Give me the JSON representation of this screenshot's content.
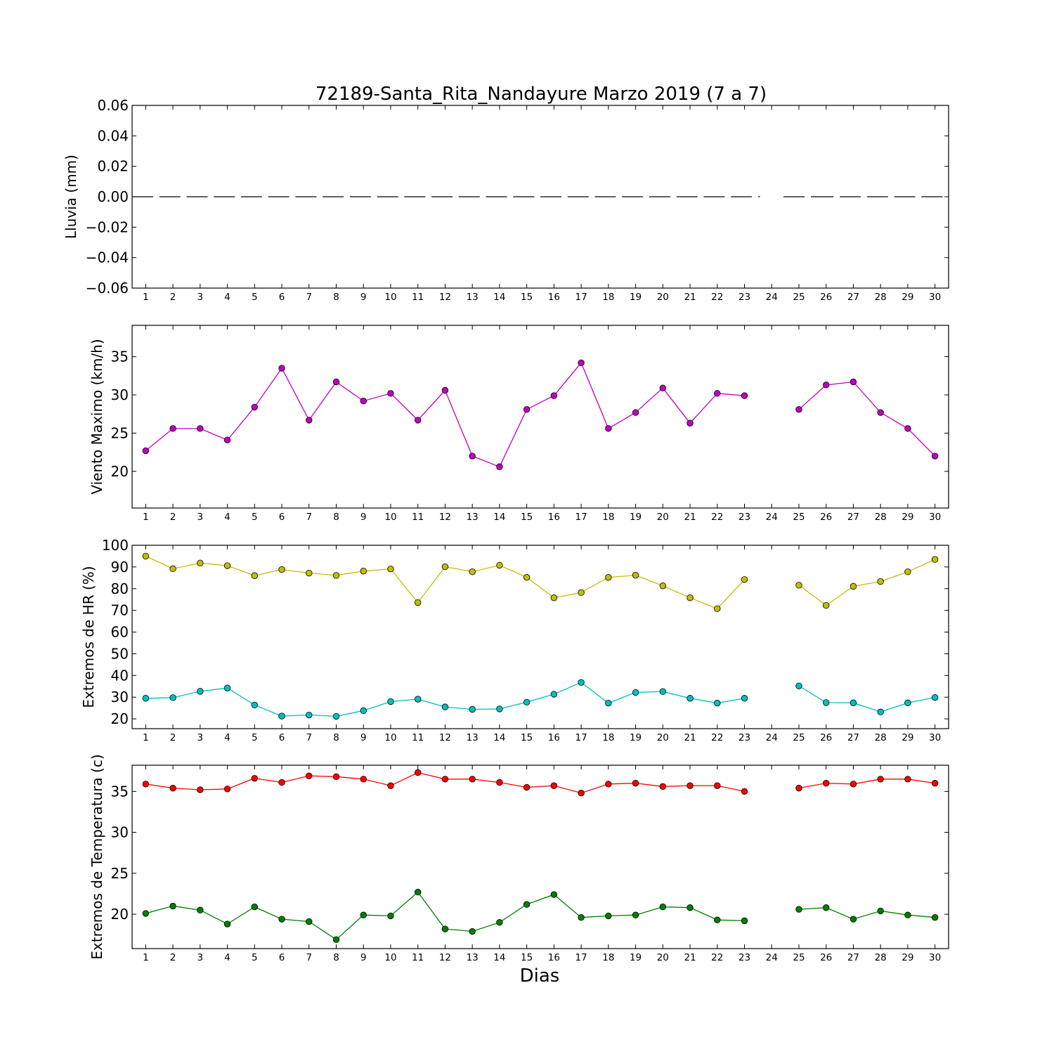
{
  "chart_data": [
    {
      "type": "line",
      "title": "72189-Santa_Rita_Nandayure Marzo 2019  (7 a 7)",
      "xlabel": "",
      "ylabel": "Lluvia (mm)",
      "x": [
        1,
        2,
        3,
        4,
        5,
        6,
        7,
        8,
        9,
        10,
        11,
        12,
        13,
        14,
        15,
        16,
        17,
        18,
        19,
        20,
        21,
        22,
        23,
        24,
        25,
        26,
        27,
        28,
        29,
        30
      ],
      "xlim": [
        0.5,
        30.5
      ],
      "ylim": [
        -0.06,
        0.06
      ],
      "yticks": [
        -0.06,
        -0.04,
        -0.02,
        0.0,
        0.02,
        0.04,
        0.06
      ],
      "ytick_labels": [
        "−0.06",
        "−0.04",
        "−0.02",
        "0.00",
        "0.02",
        "0.04",
        "0.06"
      ],
      "grid": false,
      "series": [
        {
          "color": "#000000",
          "style": "dashed",
          "values": [
            0,
            0,
            0,
            0,
            0,
            0,
            0,
            0,
            0,
            0,
            0,
            0,
            0,
            0,
            0,
            0,
            0,
            0,
            0,
            0,
            0,
            0,
            0,
            null,
            0,
            0,
            0,
            0,
            0,
            0
          ]
        }
      ]
    },
    {
      "type": "line",
      "title": "",
      "xlabel": "",
      "ylabel": "Viento Maximo (km/h)",
      "x": [
        1,
        2,
        3,
        4,
        5,
        6,
        7,
        8,
        9,
        10,
        11,
        12,
        13,
        14,
        15,
        16,
        17,
        18,
        19,
        20,
        21,
        22,
        23,
        24,
        25,
        26,
        27,
        28,
        29,
        30
      ],
      "xlim": [
        0.5,
        30.5
      ],
      "ylim": [
        15.2,
        39.1
      ],
      "yticks": [
        20,
        25,
        30,
        35
      ],
      "ytick_labels": [
        "20",
        "25",
        "30",
        "35"
      ],
      "grid": false,
      "series": [
        {
          "color": "#bf00bf",
          "values": [
            22.7,
            25.6,
            25.6,
            24.1,
            28.4,
            33.5,
            26.7,
            31.7,
            29.2,
            30.2,
            26.7,
            30.6,
            22.0,
            20.6,
            28.1,
            29.9,
            34.2,
            25.6,
            27.7,
            30.9,
            26.3,
            30.2,
            29.9,
            null,
            28.1,
            31.3,
            31.7,
            27.7,
            25.6,
            22.0
          ]
        }
      ]
    },
    {
      "type": "line",
      "title": "",
      "xlabel": "",
      "ylabel": "Extremos de HR (%)",
      "x": [
        1,
        2,
        3,
        4,
        5,
        6,
        7,
        8,
        9,
        10,
        11,
        12,
        13,
        14,
        15,
        16,
        17,
        18,
        19,
        20,
        21,
        22,
        23,
        24,
        25,
        26,
        27,
        28,
        29,
        30
      ],
      "xlim": [
        0.5,
        30.5
      ],
      "ylim": [
        15.5,
        100
      ],
      "yticks": [
        20,
        30,
        40,
        50,
        60,
        70,
        80,
        90,
        100
      ],
      "ytick_labels": [
        "20",
        "30",
        "40",
        "50",
        "60",
        "70",
        "80",
        "90",
        "100"
      ],
      "grid": false,
      "series": [
        {
          "color": "#bfbf00",
          "values": [
            95,
            89.2,
            91.8,
            90.6,
            86,
            88.8,
            87.2,
            86.1,
            88.1,
            89.1,
            73.6,
            90.1,
            87.8,
            90.8,
            85.2,
            75.8,
            78.2,
            85.2,
            86.2,
            81.3,
            75.8,
            70.8,
            84.2,
            null,
            81.6,
            72.3,
            81.1,
            83.3,
            87.8,
            93.5
          ]
        },
        {
          "color": "#00bfbf",
          "values": [
            29.5,
            29.8,
            32.7,
            34.2,
            26.4,
            21.3,
            21.8,
            21.2,
            23.8,
            28,
            29.1,
            25.5,
            24.4,
            24.6,
            27.7,
            31.4,
            36.8,
            27.3,
            32.2,
            32.6,
            29.5,
            27.3,
            29.5,
            null,
            35.2,
            27.5,
            27.4,
            23.2,
            27.4,
            29.9
          ]
        }
      ]
    },
    {
      "type": "line",
      "title": "",
      "xlabel": "Dias",
      "ylabel": "Extremos de Temperatura (c)",
      "x": [
        1,
        2,
        3,
        4,
        5,
        6,
        7,
        8,
        9,
        10,
        11,
        12,
        13,
        14,
        15,
        16,
        17,
        18,
        19,
        20,
        21,
        22,
        23,
        24,
        25,
        26,
        27,
        28,
        29,
        30
      ],
      "xlim": [
        0.5,
        30.5
      ],
      "ylim": [
        15.8,
        38.2
      ],
      "yticks": [
        20,
        25,
        30,
        35
      ],
      "ytick_labels": [
        "20",
        "25",
        "30",
        "35"
      ],
      "grid": false,
      "series": [
        {
          "color": "#ff0000",
          "values": [
            35.9,
            35.4,
            35.2,
            35.3,
            36.6,
            36.1,
            36.9,
            36.8,
            36.5,
            35.7,
            37.3,
            36.5,
            36.5,
            36.1,
            35.5,
            35.7,
            34.8,
            35.9,
            36.0,
            35.6,
            35.7,
            35.7,
            35.0,
            null,
            35.4,
            36.0,
            35.9,
            36.5,
            36.5,
            36.0
          ]
        },
        {
          "color": "#007f00",
          "values": [
            20.1,
            21.0,
            20.5,
            18.8,
            20.9,
            19.4,
            19.1,
            16.9,
            19.9,
            19.8,
            22.7,
            18.2,
            17.9,
            19.0,
            21.2,
            22.4,
            19.6,
            19.8,
            19.9,
            20.9,
            20.8,
            19.3,
            19.2,
            null,
            20.6,
            20.8,
            19.4,
            20.4,
            19.9,
            19.6
          ]
        }
      ]
    }
  ]
}
